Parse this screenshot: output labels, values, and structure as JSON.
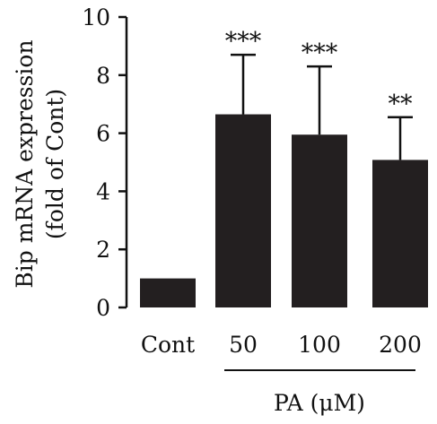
{
  "chart_data": {
    "type": "bar",
    "categories": [
      "Cont",
      "50",
      "100",
      "200"
    ],
    "values": [
      1.0,
      6.65,
      5.95,
      5.08
    ],
    "errors_upper": [
      0.0,
      2.05,
      2.35,
      1.47
    ],
    "significance": [
      "",
      "***",
      "***",
      "**"
    ],
    "ylabel_line1": "Bip mRNA expression",
    "ylabel_line2": "(fold of Cont)",
    "xgroup_label": "PA (μM)",
    "ylim": [
      0,
      10
    ],
    "yticks": [
      "0",
      "2",
      "4",
      "6",
      "8",
      "10"
    ],
    "bar_color": "#231f20",
    "grid": false,
    "legend": "none"
  }
}
